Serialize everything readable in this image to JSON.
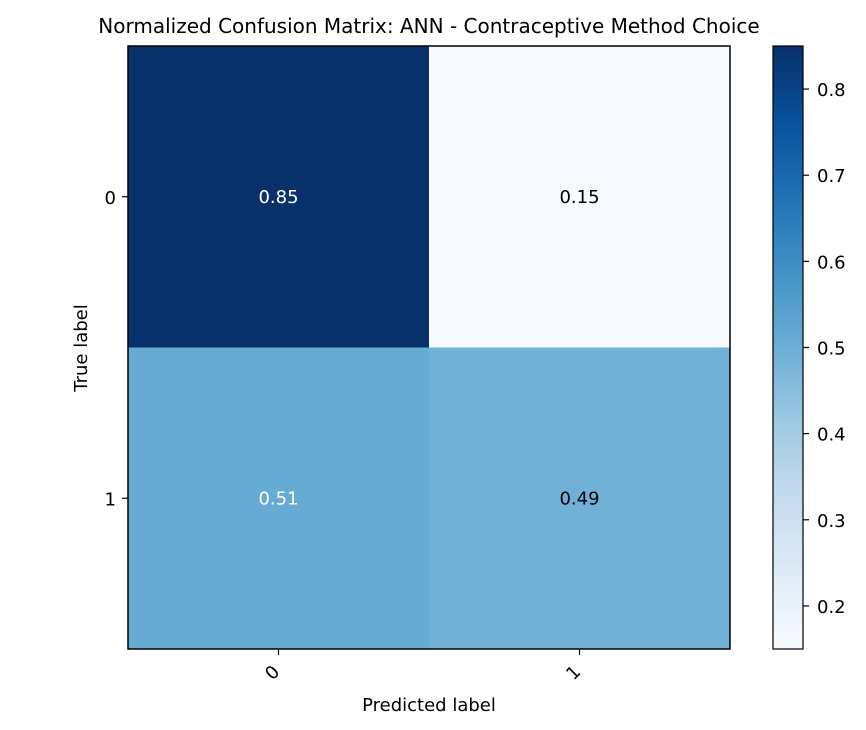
{
  "chart_data": {
    "type": "heatmap",
    "title": "Normalized Confusion Matrix: ANN - Contraceptive Method Choice",
    "xlabel": "Predicted label",
    "ylabel": "True label",
    "x_categories": [
      "0",
      "1"
    ],
    "y_categories": [
      "0",
      "1"
    ],
    "values": [
      [
        0.85,
        0.15
      ],
      [
        0.51,
        0.49
      ]
    ],
    "cell_labels": [
      [
        "0.85",
        "0.15"
      ],
      [
        "0.51",
        "0.49"
      ]
    ],
    "colorbar": {
      "colormap": "Blues",
      "range": [
        0.15,
        0.85
      ],
      "ticks": [
        0.2,
        0.3,
        0.4,
        0.5,
        0.6,
        0.7,
        0.8
      ],
      "tick_labels": [
        "0.2",
        "0.3",
        "0.4",
        "0.5",
        "0.6",
        "0.7",
        "0.8"
      ]
    },
    "text_colors": {
      "dark_cell": "#ffffff",
      "light_cell": "#000000"
    }
  }
}
